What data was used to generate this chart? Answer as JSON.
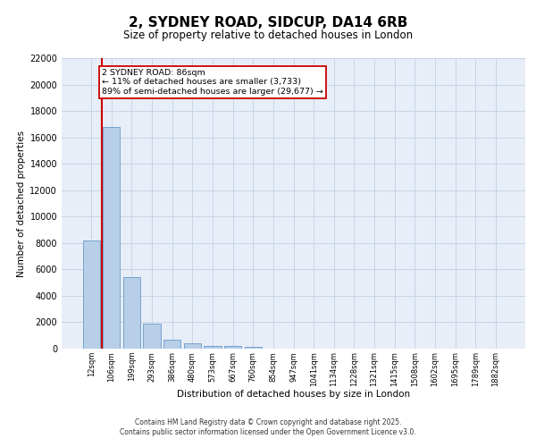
{
  "title": "2, SYDNEY ROAD, SIDCUP, DA14 6RB",
  "subtitle": "Size of property relative to detached houses in London",
  "xlabel": "Distribution of detached houses by size in London",
  "ylabel": "Number of detached properties",
  "bar_color": "#b8cfe8",
  "bar_edge_color": "#6699cc",
  "grid_color": "#c8d4e4",
  "background_color": "#e8eef8",
  "annotation_box_color": "#cc0000",
  "annotation_text": "2 SYDNEY ROAD: 86sqm\n← 11% of detached houses are smaller (3,733)\n89% of semi-detached houses are larger (29,677) →",
  "property_line_color": "#cc0000",
  "categories": [
    "12sqm",
    "106sqm",
    "199sqm",
    "293sqm",
    "386sqm",
    "480sqm",
    "573sqm",
    "667sqm",
    "760sqm",
    "854sqm",
    "947sqm",
    "1041sqm",
    "1134sqm",
    "1228sqm",
    "1321sqm",
    "1415sqm",
    "1508sqm",
    "1602sqm",
    "1695sqm",
    "1789sqm",
    "1882sqm"
  ],
  "values": [
    8200,
    16800,
    5400,
    1900,
    700,
    400,
    220,
    200,
    120,
    0,
    0,
    0,
    0,
    0,
    0,
    0,
    0,
    0,
    0,
    0,
    0
  ],
  "ylim": [
    0,
    22000
  ],
  "yticks": [
    0,
    2000,
    4000,
    6000,
    8000,
    10000,
    12000,
    14000,
    16000,
    18000,
    20000,
    22000
  ],
  "footnote": "Contains HM Land Registry data © Crown copyright and database right 2025.\nContains public sector information licensed under the Open Government Licence v3.0."
}
